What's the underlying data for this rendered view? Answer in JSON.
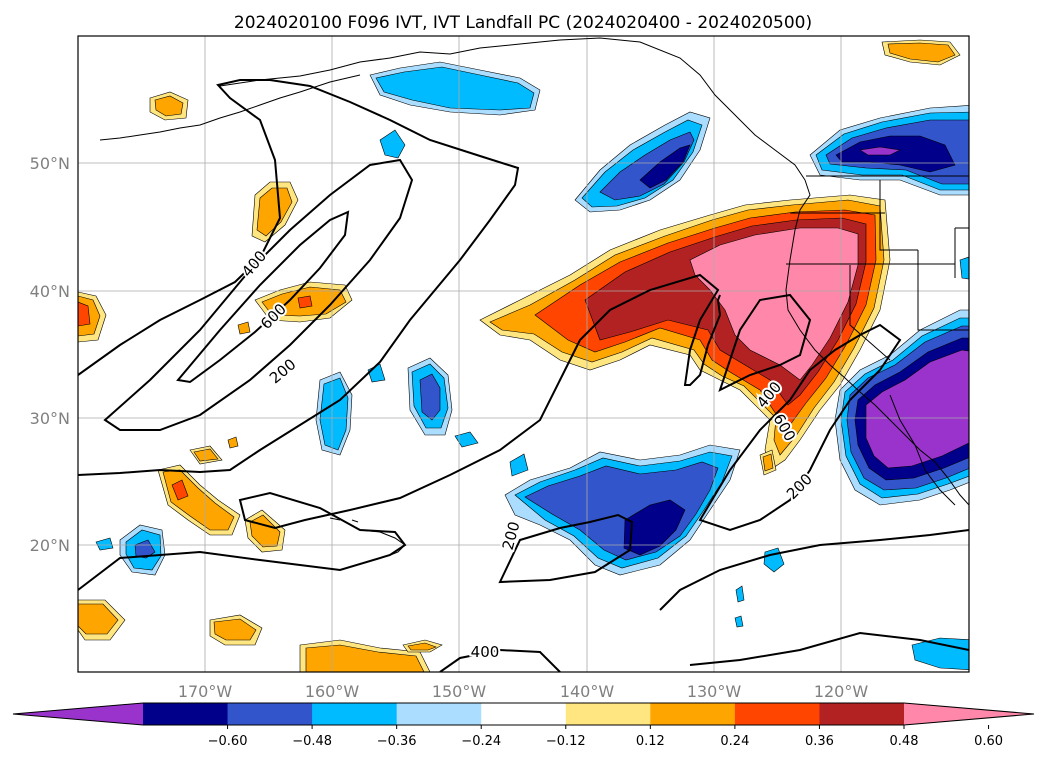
{
  "title": "2024020100 F096 IVT, IVT Landfall PC (2024020400 - 2024020500)",
  "map": {
    "lat_labels": [
      "50°N",
      "40°N",
      "30°N",
      "20°N"
    ],
    "lon_labels": [
      "170°W",
      "160°W",
      "150°W",
      "140°W",
      "130°W",
      "120°W"
    ],
    "contour_labels": [
      "400",
      "600",
      "200",
      "400",
      "600",
      "200",
      "200",
      "400"
    ]
  },
  "colorbar": {
    "ticks": [
      "−0.60",
      "−0.48",
      "−0.36",
      "−0.24",
      "−0.12",
      "0.12",
      "0.24",
      "0.36",
      "0.48",
      "0.60"
    ],
    "colors": [
      "#9933cc",
      "#00008b",
      "#3355cc",
      "#00bbff",
      "#aaddff",
      "#ffffff",
      "#ffe680",
      "#ffa500",
      "#ff4500",
      "#b22222",
      "#ff88aa"
    ]
  }
}
